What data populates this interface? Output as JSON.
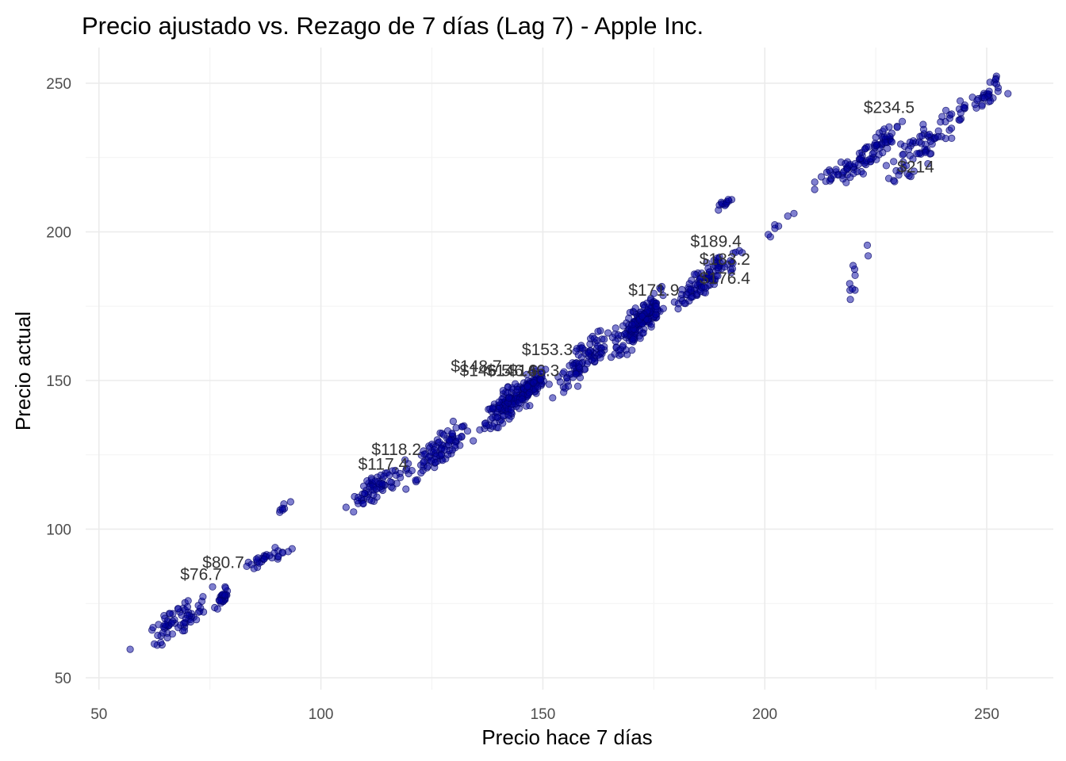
{
  "chart_data": {
    "type": "scatter",
    "title": "Precio ajustado vs. Rezago de 7 días (Lag 7) - Apple Inc.",
    "xlabel": "Precio hace 7 días",
    "ylabel": "Precio actual",
    "xlim": [
      47,
      265
    ],
    "ylim": [
      46,
      262
    ],
    "x_ticks": [
      50,
      100,
      150,
      200,
      250
    ],
    "y_ticks": [
      50,
      100,
      150,
      200,
      250
    ],
    "grid": true,
    "legend": "none",
    "point_color": "#00008B",
    "clusters": [
      {
        "x": [
          54,
          80
        ],
        "y": [
          55,
          82
        ],
        "n": 70
      },
      {
        "x": [
          76,
          80
        ],
        "y": [
          72,
          83
        ],
        "n": 25
      },
      {
        "x": [
          80,
          95
        ],
        "y": [
          84,
          96
        ],
        "n": 30
      },
      {
        "x": [
          89,
          94
        ],
        "y": [
          103,
          111
        ],
        "n": 7
      },
      {
        "x": [
          103,
          122
        ],
        "y": [
          104,
          125
        ],
        "n": 70
      },
      {
        "x": [
          118,
          135
        ],
        "y": [
          112,
          141
        ],
        "n": 90
      },
      {
        "x": [
          133,
          153
        ],
        "y": [
          128,
          158
        ],
        "n": 140
      },
      {
        "x": [
          142,
          152
        ],
        "y": [
          140,
          155
        ],
        "n": 60
      },
      {
        "x": [
          150,
          168
        ],
        "y": [
          140,
          172
        ],
        "n": 90
      },
      {
        "x": [
          163,
          180
        ],
        "y": [
          153,
          185
        ],
        "n": 130
      },
      {
        "x": [
          168,
          178
        ],
        "y": [
          165,
          178
        ],
        "n": 60
      },
      {
        "x": [
          178,
          196
        ],
        "y": [
          172,
          197
        ],
        "n": 100
      },
      {
        "x": [
          188,
          194
        ],
        "y": [
          205,
          215
        ],
        "n": 12
      },
      {
        "x": [
          198,
          208
        ],
        "y": [
          195,
          210
        ],
        "n": 7
      },
      {
        "x": [
          208,
          230
        ],
        "y": [
          210,
          233
        ],
        "n": 60
      },
      {
        "x": [
          220,
          232
        ],
        "y": [
          220,
          240
        ],
        "n": 40
      },
      {
        "x": [
          225,
          246
        ],
        "y": [
          210,
          248
        ],
        "n": 70
      },
      {
        "x": [
          238,
          259
        ],
        "y": [
          232,
          258
        ],
        "n": 40
      },
      {
        "x": [
          217,
          225
        ],
        "y": [
          172,
          203
        ],
        "n": 10
      }
    ],
    "annotations": [
      {
        "text": "$76.7",
        "x": 73,
        "y": 83
      },
      {
        "text": "$80.7",
        "x": 78,
        "y": 87
      },
      {
        "text": "$117.4",
        "x": 114,
        "y": 120
      },
      {
        "text": "$118.2",
        "x": 117,
        "y": 125
      },
      {
        "text": "$148.7",
        "x": 135,
        "y": 153
      },
      {
        "text": "$146.5",
        "x": 137,
        "y": 151.5
      },
      {
        "text": "$146.6",
        "x": 143,
        "y": 151.5
      },
      {
        "text": "$146.3",
        "x": 148,
        "y": 151.5
      },
      {
        "text": "$153.3",
        "x": 151,
        "y": 158.5
      },
      {
        "text": "$171.9",
        "x": 175,
        "y": 178.5
      },
      {
        "text": "$189.4",
        "x": 189,
        "y": 195
      },
      {
        "text": "$183.2",
        "x": 191,
        "y": 189
      },
      {
        "text": "$176.4",
        "x": 191,
        "y": 182.5
      },
      {
        "text": "$234.5",
        "x": 228,
        "y": 240
      },
      {
        "text": "$214",
        "x": 234,
        "y": 220
      }
    ]
  }
}
